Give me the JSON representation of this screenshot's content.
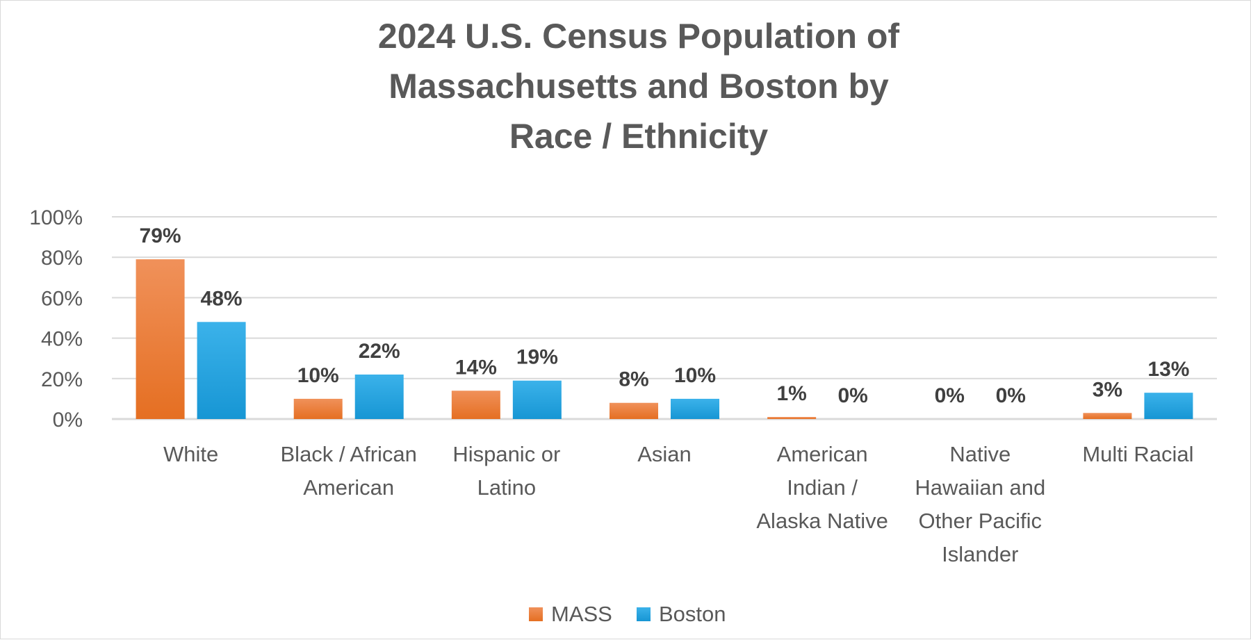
{
  "chart_data": {
    "type": "bar",
    "title_lines": [
      "2024 U.S. Census Population of",
      "Massachusetts and Boston by",
      "Race / Ethnicity"
    ],
    "categories": [
      [
        "White"
      ],
      [
        "Black / African",
        "American"
      ],
      [
        "Hispanic or",
        "Latino"
      ],
      [
        "Asian"
      ],
      [
        "American",
        "Indian /",
        "Alaska Native"
      ],
      [
        "Native",
        "Hawaiian and",
        "Other Pacific",
        "Islander"
      ],
      [
        "Multi Racial"
      ]
    ],
    "series": [
      {
        "name": "MASS",
        "color": "#ED7D31",
        "values": [
          79,
          10,
          14,
          8,
          1,
          0,
          3
        ],
        "labels": [
          "79%",
          "10%",
          "14%",
          "8%",
          "1%",
          "0%",
          "3%"
        ]
      },
      {
        "name": "Boston",
        "color": "#1FA3E0",
        "values": [
          48,
          22,
          19,
          10,
          0,
          0,
          13
        ],
        "labels": [
          "48%",
          "22%",
          "19%",
          "10%",
          "0%",
          "0%",
          "13%"
        ]
      }
    ],
    "yticks": [
      "0%",
      "20%",
      "40%",
      "60%",
      "80%",
      "100%"
    ],
    "ylim": [
      0,
      100
    ],
    "ystep": 20,
    "grid": true,
    "legend": "bottom"
  }
}
